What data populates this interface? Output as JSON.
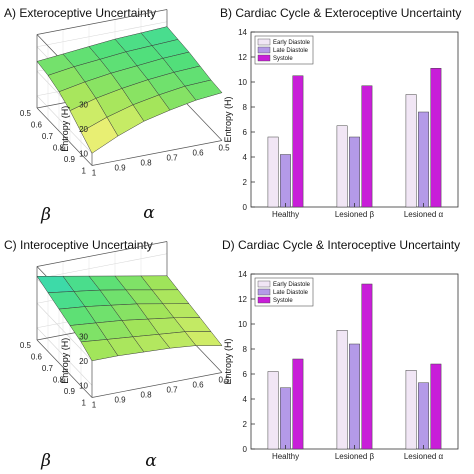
{
  "panels": {
    "a": {
      "title": "A) Exteroceptive Uncertainty"
    },
    "b": {
      "title": "B) Cardiac Cycle & Exteroceptive Uncertainty"
    },
    "c": {
      "title": "C) Interoceptive Uncertainty"
    },
    "d": {
      "title": "D) Cardiac Cycle & Interoceptive Uncertainty"
    }
  },
  "surface_axes": {
    "zlabel": "Entropy (H)",
    "zticks": [
      "10",
      "20",
      "30"
    ],
    "beta_ticks": [
      "0.5",
      "0.6",
      "0.7",
      "0.8",
      "0.9",
      "1"
    ],
    "alpha_ticks": [
      "1",
      "0.9",
      "0.8",
      "0.7",
      "0.6",
      "0.5"
    ],
    "beta_label": "β",
    "alpha_label": "α"
  },
  "colors": {
    "early_diastole": "#f1e6f5",
    "late_diastole": "#b49ae8",
    "systole": "#c81ed8"
  },
  "chart_data": [
    {
      "type": "surface",
      "panel": "A",
      "title": "A) Exteroceptive Uncertainty",
      "zlabel": "Entropy (H)",
      "zlim": [
        5,
        35
      ],
      "beta": [
        0.5,
        0.6,
        0.7,
        0.8,
        0.9,
        1.0
      ],
      "alpha": [
        1.0,
        0.9,
        0.8,
        0.7,
        0.6,
        0.5
      ],
      "z": [
        [
          24,
          25,
          26,
          27,
          27.5,
          28
        ],
        [
          23,
          24.5,
          25.5,
          26.5,
          27,
          27.5
        ],
        [
          21,
          23,
          24.5,
          25.5,
          26.5,
          27
        ],
        [
          18,
          21,
          23,
          24.5,
          25.5,
          26
        ],
        [
          14,
          18,
          21,
          23,
          24.5,
          25
        ],
        [
          10,
          15,
          19,
          21.5,
          23.5,
          24.5
        ]
      ]
    },
    {
      "type": "bar",
      "panel": "B",
      "title": "B) Cardiac Cycle & Exteroceptive Uncertainty",
      "ylabel": "Entropy (H)",
      "ylim": [
        0,
        14
      ],
      "yticks": [
        0,
        2,
        4,
        6,
        8,
        10,
        12,
        14
      ],
      "categories": [
        "Healthy",
        "Lesioned β",
        "Lesioned α"
      ],
      "series": [
        {
          "name": "Early Diastole",
          "values": [
            5.6,
            6.5,
            9.0
          ]
        },
        {
          "name": "Late Diastole",
          "values": [
            4.2,
            5.6,
            7.6
          ]
        },
        {
          "name": "Systole",
          "values": [
            10.5,
            9.7,
            11.1
          ]
        }
      ],
      "legend": "top-left"
    },
    {
      "type": "surface",
      "panel": "C",
      "title": "C) Interoceptive Uncertainty",
      "zlabel": "Entropy (H)",
      "zlim": [
        5,
        35
      ],
      "beta": [
        0.5,
        0.6,
        0.7,
        0.8,
        0.9,
        1.0
      ],
      "alpha": [
        1.0,
        0.9,
        0.8,
        0.7,
        0.6,
        0.5
      ],
      "z": [
        [
          31,
          29,
          27,
          25,
          23,
          21
        ],
        [
          29,
          27.5,
          26,
          24,
          22,
          20
        ],
        [
          27,
          26,
          24.5,
          23,
          21,
          19
        ],
        [
          25,
          24,
          23,
          21.5,
          20,
          18
        ],
        [
          23,
          22,
          21,
          20,
          19,
          17
        ],
        [
          20,
          20,
          19.5,
          19,
          18,
          16
        ]
      ]
    },
    {
      "type": "bar",
      "panel": "D",
      "title": "D) Cardiac Cycle & Interoceptive Uncertainty",
      "ylabel": "Entropy (H)",
      "ylim": [
        0,
        14
      ],
      "yticks": [
        0,
        2,
        4,
        6,
        8,
        10,
        12,
        14
      ],
      "categories": [
        "Healthy",
        "Lesioned β",
        "Lesioned α"
      ],
      "series": [
        {
          "name": "Early Diastole",
          "values": [
            6.2,
            9.5,
            6.3
          ]
        },
        {
          "name": "Late Diastole",
          "values": [
            4.9,
            8.4,
            5.3
          ]
        },
        {
          "name": "Systole",
          "values": [
            7.2,
            13.2,
            6.8
          ]
        }
      ],
      "legend": "top-left"
    }
  ]
}
